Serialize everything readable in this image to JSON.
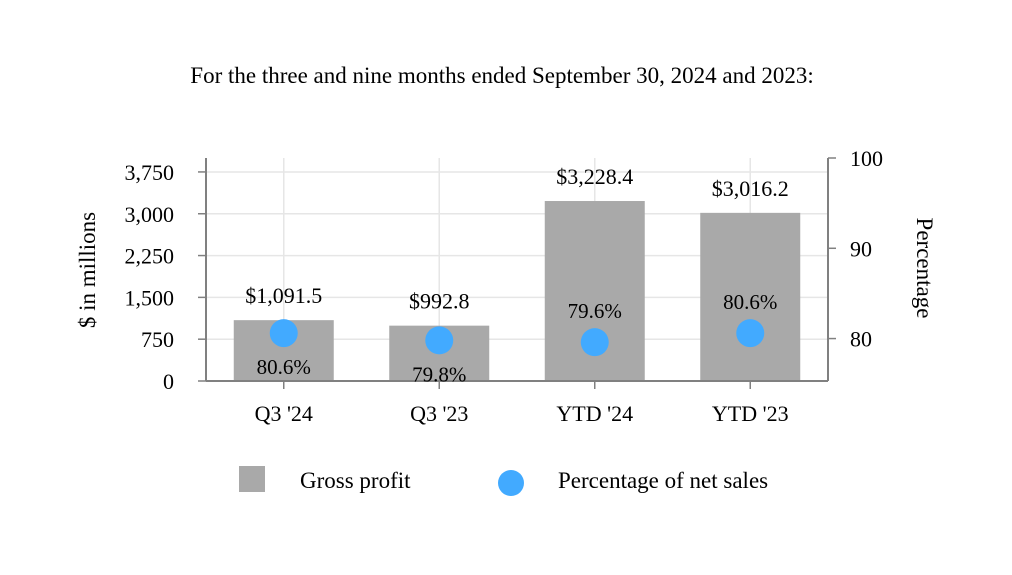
{
  "chart_data": {
    "type": "bar",
    "title": "For the three and nine months ended September 30, 2024 and 2023:",
    "categories": [
      "Q3 '24",
      "Q3 '23",
      "YTD '24",
      "YTD '23"
    ],
    "series": [
      {
        "name": "Gross profit",
        "type": "bar",
        "axis": "left",
        "values": [
          1091.5,
          992.8,
          3228.4,
          3016.2
        ],
        "labels": [
          "$1,091.5",
          "$992.8",
          "$3,228.4",
          "$3,016.2"
        ],
        "color": "#a9a9a9"
      },
      {
        "name": "Percentage of net sales",
        "type": "scatter",
        "axis": "right",
        "values": [
          80.6,
          79.8,
          79.6,
          80.6
        ],
        "labels": [
          "80.6%",
          "79.8%",
          "79.6%",
          "80.6%"
        ],
        "color": "#42aaff"
      }
    ],
    "ylabel": "$ in millions",
    "y2label": "Percentage",
    "ylim": [
      0,
      4000
    ],
    "y2lim": [
      75.3,
      100
    ],
    "yticks": [
      0,
      750,
      1500,
      2250,
      3000,
      3750
    ],
    "ytick_labels": [
      "0",
      "750",
      "1,500",
      "2,250",
      "3,000",
      "3,750"
    ],
    "y2ticks": [
      80,
      90,
      100
    ],
    "y2tick_labels": [
      "80",
      "90",
      "100"
    ],
    "grid": true,
    "legend_position": "bottom"
  }
}
